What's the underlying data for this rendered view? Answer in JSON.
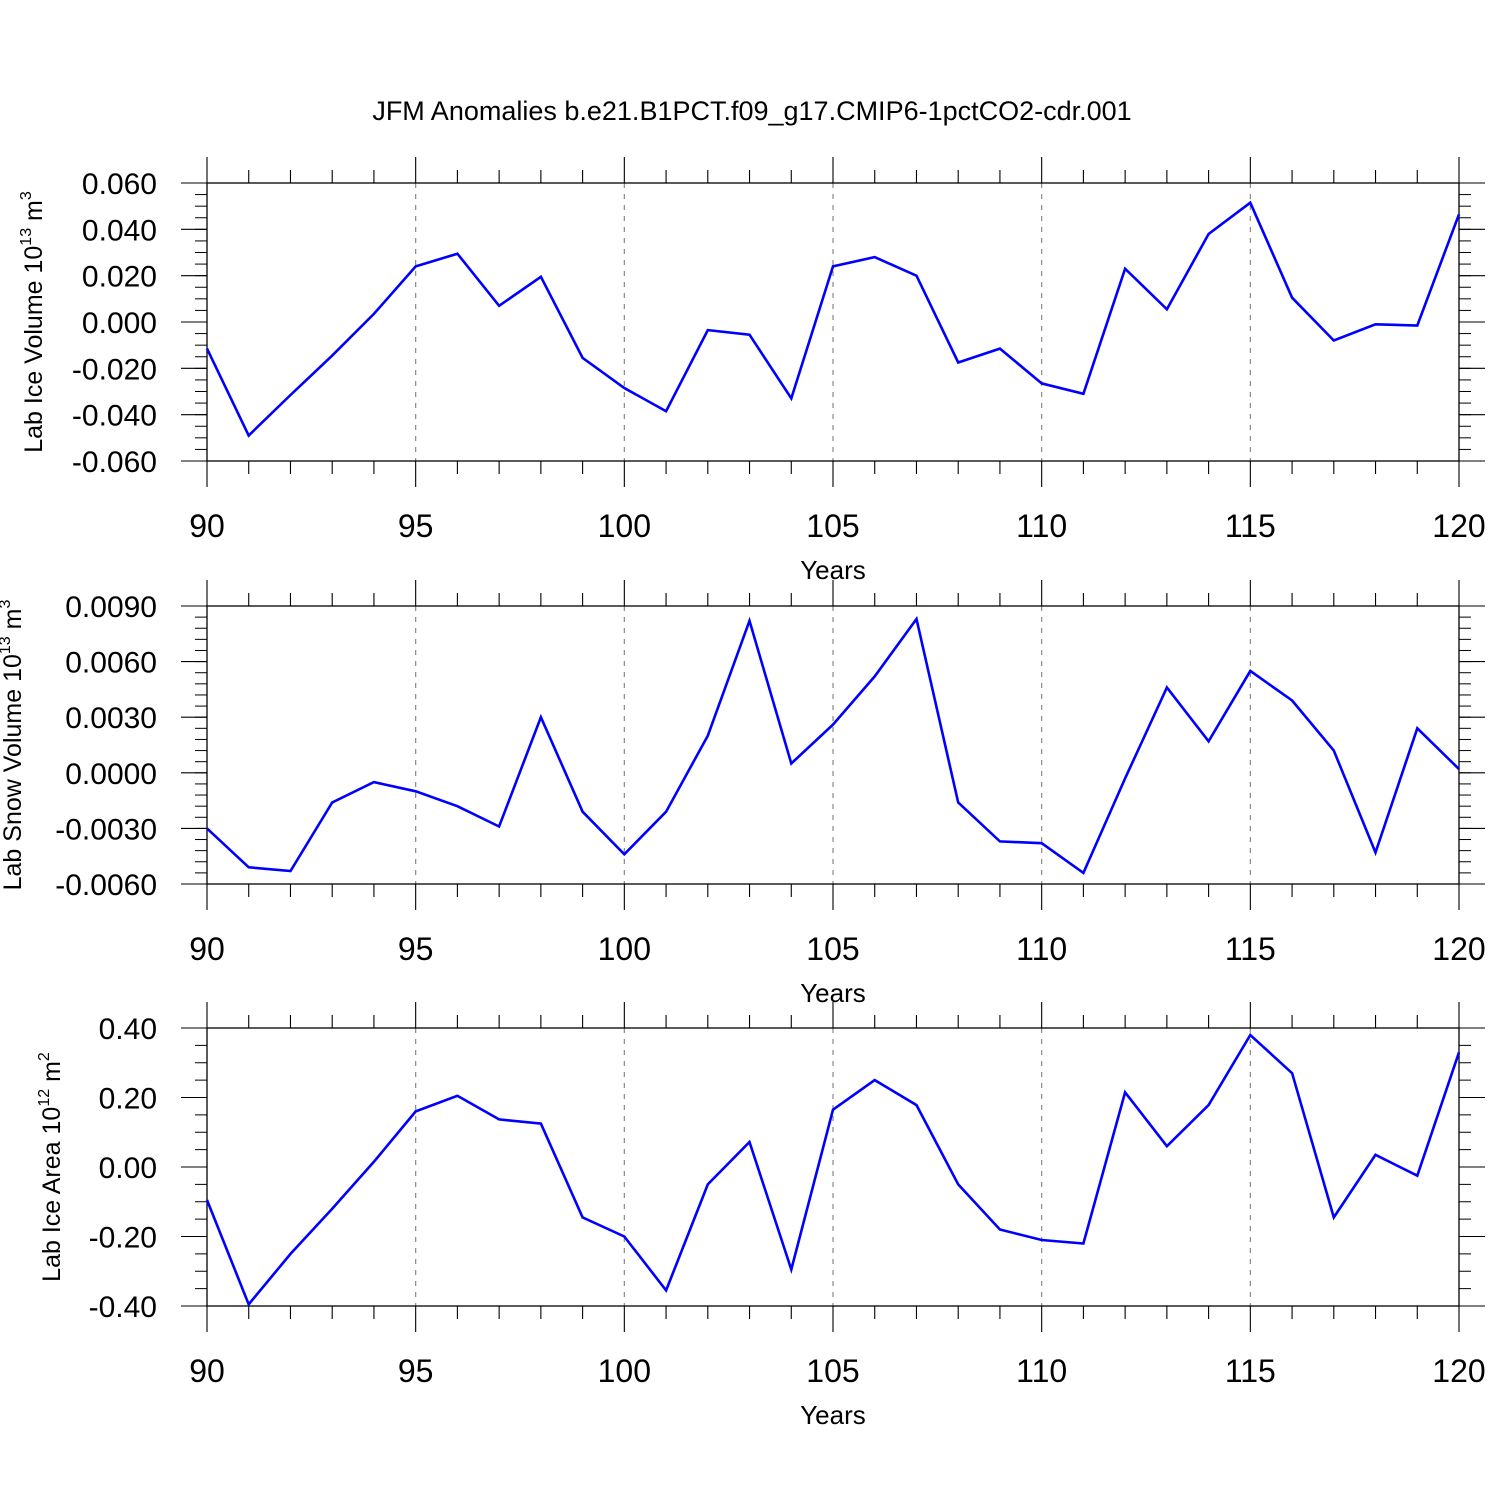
{
  "title": "JFM Anomalies b.e21.B1PCT.f09_g17.CMIP6-1pctCO2-cdr.001",
  "colors": {
    "line": "#0000ff",
    "axis": "#000000",
    "grid": "#888888"
  },
  "chart_data": [
    {
      "type": "line",
      "ylabel_main": "Lab Ice Volume 10",
      "ylabel_exp": "13",
      "ylabel_unit": "m",
      "ylabel_unit_exp": "3",
      "xlabel": "Years",
      "xlim": [
        90,
        120
      ],
      "ylim": [
        -0.06,
        0.06
      ],
      "yticks": [
        -0.06,
        -0.04,
        -0.02,
        0.0,
        0.02,
        0.04,
        0.06
      ],
      "ytick_labels": [
        "-0.060",
        "-0.040",
        "-0.020",
        "0.000",
        "0.020",
        "0.040",
        "0.060"
      ],
      "yminor_step": 0.005,
      "xticks": [
        90,
        95,
        100,
        105,
        110,
        115,
        120
      ],
      "xtick_labels": [
        "90",
        "95",
        "100",
        "105",
        "110",
        "115",
        "120"
      ],
      "grid": true,
      "series": [
        {
          "name": "Lab Ice Volume",
          "x": [
            90,
            91,
            92,
            93,
            94,
            95,
            96,
            97,
            98,
            99,
            100,
            101,
            102,
            103,
            104,
            105,
            106,
            107,
            108,
            109,
            110,
            111,
            112,
            113,
            114,
            115,
            116,
            117,
            118,
            119,
            120
          ],
          "values": [
            -0.0115,
            -0.049,
            -0.0315,
            -0.0145,
            0.0035,
            0.024,
            0.0295,
            0.007,
            0.0195,
            -0.0155,
            -0.0285,
            -0.0385,
            -0.0035,
            -0.0055,
            -0.033,
            0.024,
            0.028,
            0.02,
            -0.0175,
            -0.0115,
            -0.0265,
            -0.031,
            0.023,
            0.0055,
            0.038,
            0.0515,
            0.0105,
            -0.008,
            -0.001,
            -0.0015,
            0.0465
          ]
        }
      ]
    },
    {
      "type": "line",
      "ylabel_main": "Lab Snow Volume 10",
      "ylabel_exp": "13",
      "ylabel_unit": "m",
      "ylabel_unit_exp": "3",
      "xlabel": "Years",
      "xlim": [
        90,
        120
      ],
      "ylim": [
        -0.006,
        0.009
      ],
      "yticks": [
        -0.006,
        -0.003,
        0.0,
        0.003,
        0.006,
        0.009
      ],
      "ytick_labels": [
        "-0.0060",
        "-0.0030",
        "0.0000",
        "0.0030",
        "0.0060",
        "0.0090"
      ],
      "yminor_step": 0.0006,
      "xticks": [
        90,
        95,
        100,
        105,
        110,
        115,
        120
      ],
      "xtick_labels": [
        "90",
        "95",
        "100",
        "105",
        "110",
        "115",
        "120"
      ],
      "grid": true,
      "series": [
        {
          "name": "Lab Snow Volume",
          "x": [
            90,
            91,
            92,
            93,
            94,
            95,
            96,
            97,
            98,
            99,
            100,
            101,
            102,
            103,
            104,
            105,
            106,
            107,
            108,
            109,
            110,
            111,
            112,
            113,
            114,
            115,
            116,
            117,
            118,
            119,
            120
          ],
          "values": [
            -0.003,
            -0.0051,
            -0.0053,
            -0.0016,
            -0.0005,
            -0.001,
            -0.0018,
            -0.0029,
            0.003,
            -0.0021,
            -0.0044,
            -0.0021,
            0.002,
            0.0082,
            0.0005,
            0.0026,
            0.0052,
            0.0083,
            -0.0016,
            -0.0037,
            -0.0038,
            -0.0054,
            -0.0003,
            0.0046,
            0.0017,
            0.0055,
            0.0039,
            0.0012,
            -0.0043,
            0.0024,
            0.0002
          ]
        }
      ]
    },
    {
      "type": "line",
      "ylabel_main": "Lab Ice Area 10",
      "ylabel_exp": "12",
      "ylabel_unit": "m",
      "ylabel_unit_exp": "2",
      "xlabel": "Years",
      "xlim": [
        90,
        120
      ],
      "ylim": [
        -0.4,
        0.4
      ],
      "yticks": [
        -0.4,
        -0.2,
        0.0,
        0.2,
        0.4
      ],
      "ytick_labels": [
        "-0.40",
        "-0.20",
        "0.00",
        "0.20",
        "0.40"
      ],
      "yminor_step": 0.05,
      "xticks": [
        90,
        95,
        100,
        105,
        110,
        115,
        120
      ],
      "xtick_labels": [
        "90",
        "95",
        "100",
        "105",
        "110",
        "115",
        "120"
      ],
      "grid": true,
      "series": [
        {
          "name": "Lab Ice Area",
          "x": [
            90,
            91,
            92,
            93,
            94,
            95,
            96,
            97,
            98,
            99,
            100,
            101,
            102,
            103,
            104,
            105,
            106,
            107,
            108,
            109,
            110,
            111,
            112,
            113,
            114,
            115,
            116,
            117,
            118,
            119,
            120
          ],
          "values": [
            -0.095,
            -0.395,
            -0.25,
            -0.12,
            0.015,
            0.16,
            0.205,
            0.137,
            0.125,
            -0.145,
            -0.2,
            -0.355,
            -0.05,
            0.072,
            -0.295,
            0.165,
            0.25,
            0.178,
            -0.05,
            -0.18,
            -0.21,
            -0.22,
            0.215,
            0.06,
            0.178,
            0.38,
            0.27,
            -0.145,
            0.035,
            -0.025,
            0.33
          ]
        }
      ]
    }
  ]
}
